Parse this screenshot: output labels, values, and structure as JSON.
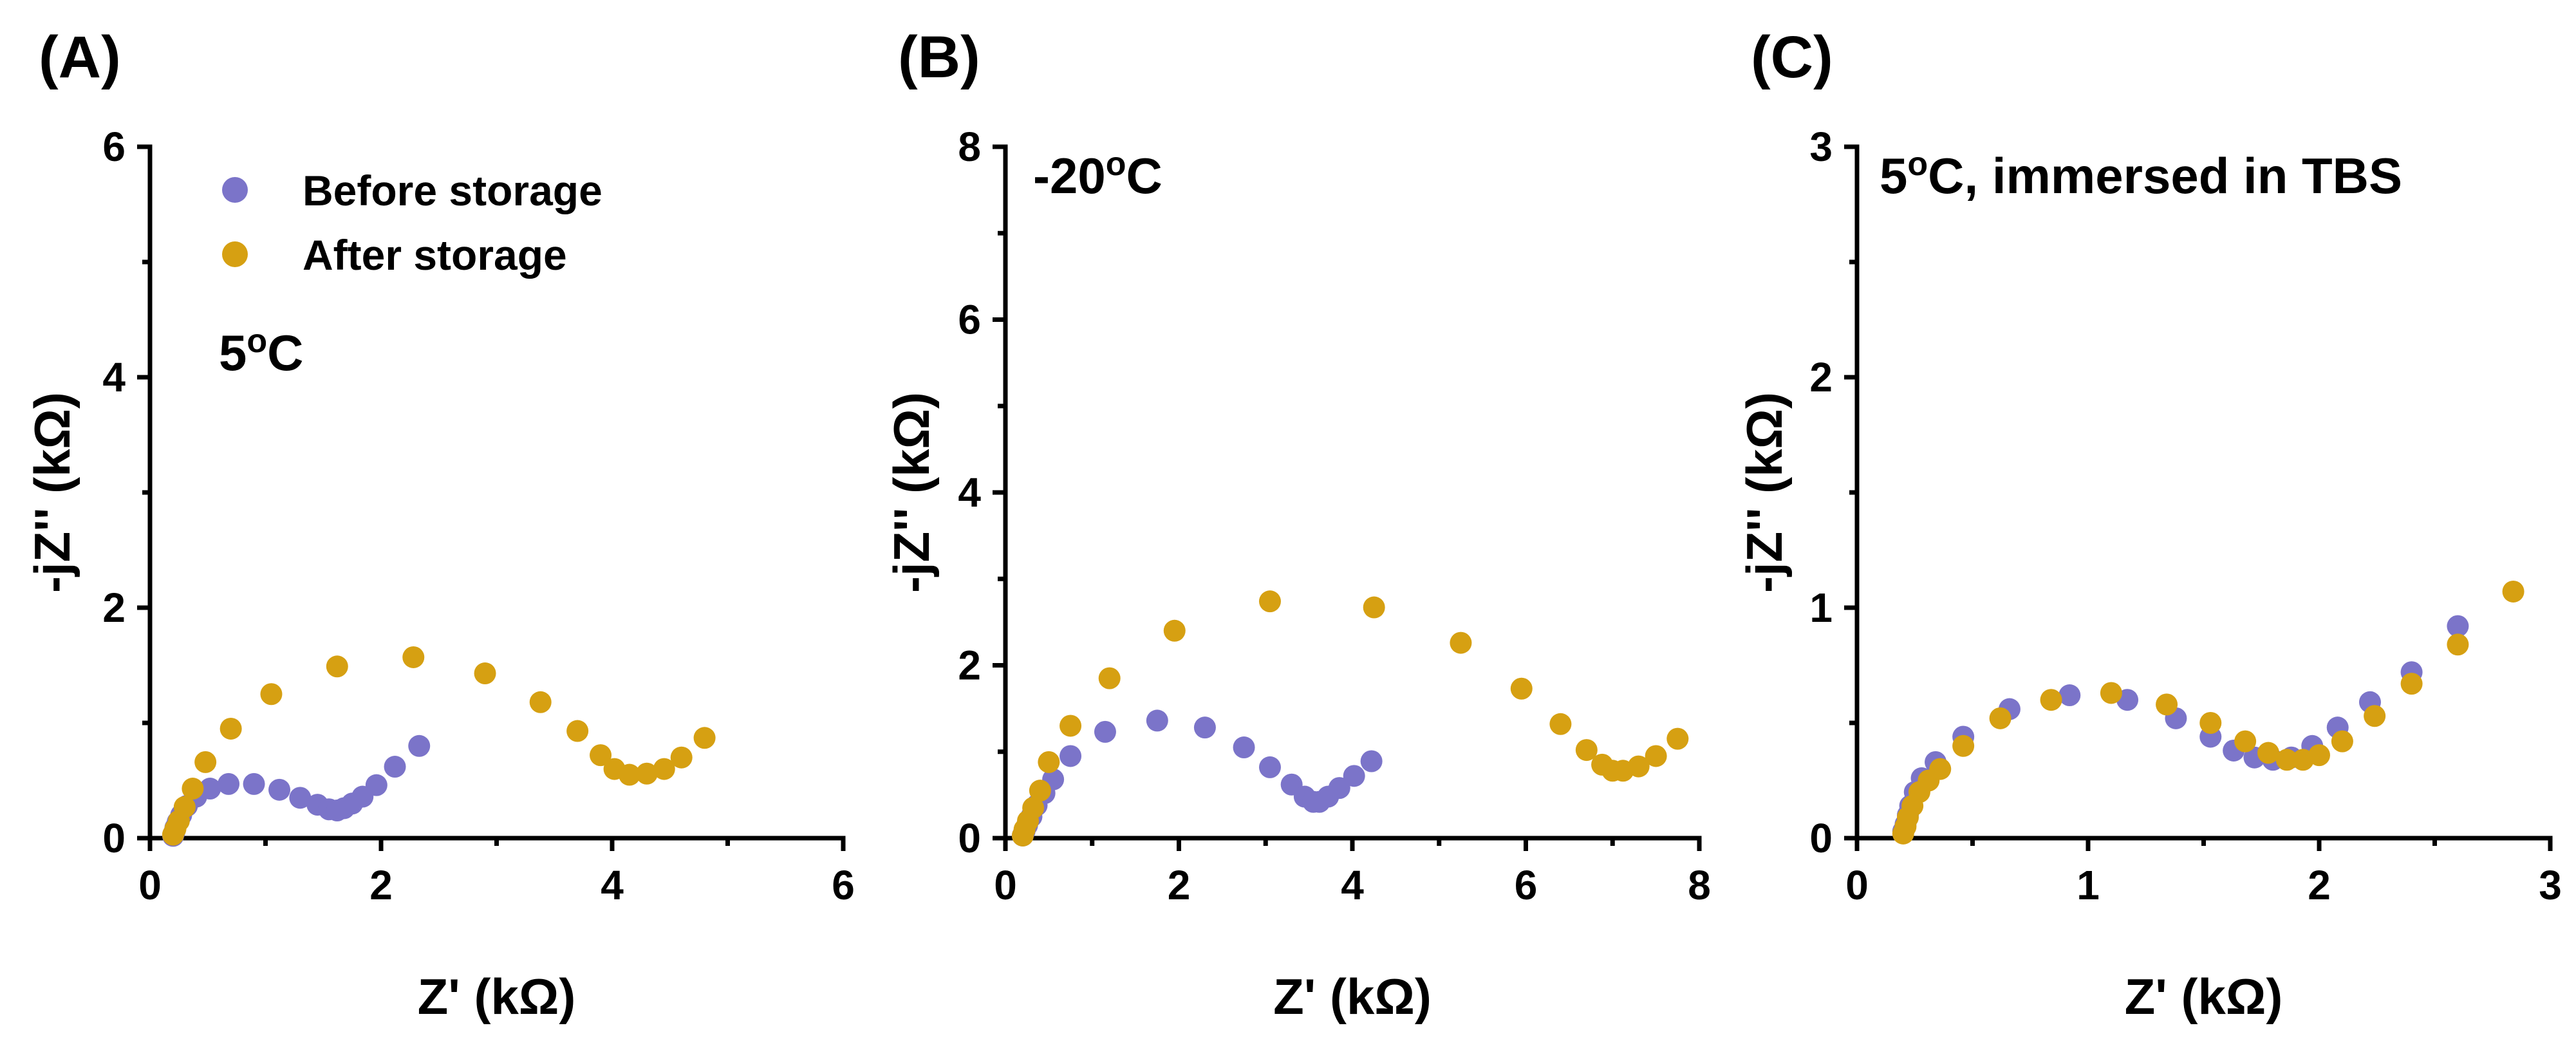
{
  "colors": {
    "before": "#7b74c9",
    "after": "#d6a012",
    "axis": "#000000"
  },
  "legend": {
    "before_label": "Before storage",
    "after_label": "After storage"
  },
  "chart_data": [
    {
      "panel": "(A)",
      "type": "scatter",
      "annotation": "5",
      "annotation_sup": "o",
      "annotation_rest": "C",
      "show_legend": true,
      "xlabel": "Z' (kΩ)",
      "ylabel": "-jZ'' (kΩ)",
      "xlim": [
        0,
        6
      ],
      "ylim": [
        0,
        6
      ],
      "xticks": [
        0,
        2,
        4,
        6
      ],
      "yticks": [
        0,
        2,
        4,
        6
      ],
      "series": [
        {
          "name": "Before storage",
          "key": "before",
          "x": [
            0.2,
            0.21,
            0.22,
            0.24,
            0.27,
            0.32,
            0.4,
            0.52,
            0.68,
            0.9,
            1.12,
            1.3,
            1.45,
            1.55,
            1.62,
            1.68,
            1.75,
            1.84,
            1.96,
            2.12,
            2.33
          ],
          "y": [
            0.02,
            0.05,
            0.09,
            0.14,
            0.2,
            0.28,
            0.36,
            0.43,
            0.47,
            0.47,
            0.42,
            0.35,
            0.29,
            0.25,
            0.24,
            0.26,
            0.3,
            0.36,
            0.46,
            0.62,
            0.8
          ]
        },
        {
          "name": "After storage",
          "key": "after",
          "x": [
            0.2,
            0.22,
            0.25,
            0.3,
            0.37,
            0.48,
            0.7,
            1.05,
            1.62,
            2.28,
            2.9,
            3.38,
            3.7,
            3.9,
            4.02,
            4.15,
            4.3,
            4.45,
            4.6,
            4.8
          ],
          "y": [
            0.03,
            0.08,
            0.15,
            0.27,
            0.43,
            0.66,
            0.95,
            1.25,
            1.49,
            1.57,
            1.43,
            1.18,
            0.93,
            0.72,
            0.6,
            0.55,
            0.56,
            0.6,
            0.7,
            0.87
          ]
        }
      ]
    },
    {
      "panel": "(B)",
      "type": "scatter",
      "annotation": "-20",
      "annotation_sup": "o",
      "annotation_rest": "C",
      "show_legend": false,
      "xlabel": "Z' (kΩ)",
      "ylabel": "-jZ'' (kΩ)",
      "xlim": [
        0,
        8
      ],
      "ylim": [
        0,
        8
      ],
      "xticks": [
        0,
        2,
        4,
        6,
        8
      ],
      "yticks": [
        0,
        2,
        4,
        6,
        8
      ],
      "series": [
        {
          "name": "Before storage",
          "key": "before",
          "x": [
            0.2,
            0.22,
            0.25,
            0.3,
            0.36,
            0.45,
            0.55,
            0.75,
            1.15,
            1.75,
            2.3,
            2.75,
            3.05,
            3.3,
            3.45,
            3.55,
            3.62,
            3.72,
            3.85,
            4.02,
            4.22
          ],
          "y": [
            0.03,
            0.08,
            0.15,
            0.25,
            0.38,
            0.52,
            0.68,
            0.95,
            1.23,
            1.36,
            1.28,
            1.05,
            0.82,
            0.62,
            0.48,
            0.42,
            0.42,
            0.48,
            0.58,
            0.72,
            0.89
          ]
        },
        {
          "name": "After storage",
          "key": "after",
          "x": [
            0.2,
            0.22,
            0.26,
            0.32,
            0.4,
            0.5,
            0.75,
            1.2,
            1.95,
            3.05,
            4.25,
            5.25,
            5.95,
            6.4,
            6.7,
            6.88,
            7.0,
            7.12,
            7.3,
            7.5,
            7.75
          ],
          "y": [
            0.03,
            0.1,
            0.2,
            0.35,
            0.55,
            0.88,
            1.3,
            1.85,
            2.4,
            2.74,
            2.67,
            2.26,
            1.73,
            1.32,
            1.02,
            0.85,
            0.78,
            0.78,
            0.83,
            0.95,
            1.15
          ]
        }
      ]
    },
    {
      "panel": "(C)",
      "type": "scatter",
      "annotation": "5",
      "annotation_sup": "o",
      "annotation_rest": "C, immersed in TBS",
      "show_legend": false,
      "xlabel": "Z' (kΩ)",
      "ylabel": "-jZ'' (kΩ)",
      "xlim": [
        0,
        3
      ],
      "ylim": [
        0,
        3
      ],
      "xticks": [
        0,
        1,
        2,
        3
      ],
      "yticks": [
        0,
        1,
        2,
        3
      ],
      "series": [
        {
          "name": "Before storage",
          "key": "before",
          "x": [
            0.2,
            0.21,
            0.22,
            0.23,
            0.25,
            0.28,
            0.34,
            0.46,
            0.66,
            0.92,
            1.17,
            1.38,
            1.53,
            1.63,
            1.72,
            1.8,
            1.88,
            1.97,
            2.08,
            2.22,
            2.4,
            2.6
          ],
          "y": [
            0.03,
            0.06,
            0.1,
            0.14,
            0.2,
            0.26,
            0.33,
            0.44,
            0.56,
            0.62,
            0.6,
            0.52,
            0.44,
            0.38,
            0.35,
            0.34,
            0.35,
            0.4,
            0.48,
            0.59,
            0.72,
            0.92
          ]
        },
        {
          "name": "After storage",
          "key": "after",
          "x": [
            0.2,
            0.21,
            0.22,
            0.24,
            0.27,
            0.31,
            0.36,
            0.46,
            0.62,
            0.84,
            1.1,
            1.34,
            1.53,
            1.68,
            1.78,
            1.86,
            1.93,
            2.0,
            2.1,
            2.24,
            2.4,
            2.6,
            2.84
          ],
          "y": [
            0.02,
            0.05,
            0.09,
            0.14,
            0.2,
            0.25,
            0.3,
            0.4,
            0.52,
            0.6,
            0.63,
            0.58,
            0.5,
            0.42,
            0.37,
            0.34,
            0.34,
            0.36,
            0.42,
            0.53,
            0.67,
            0.84,
            1.07
          ]
        }
      ]
    }
  ]
}
